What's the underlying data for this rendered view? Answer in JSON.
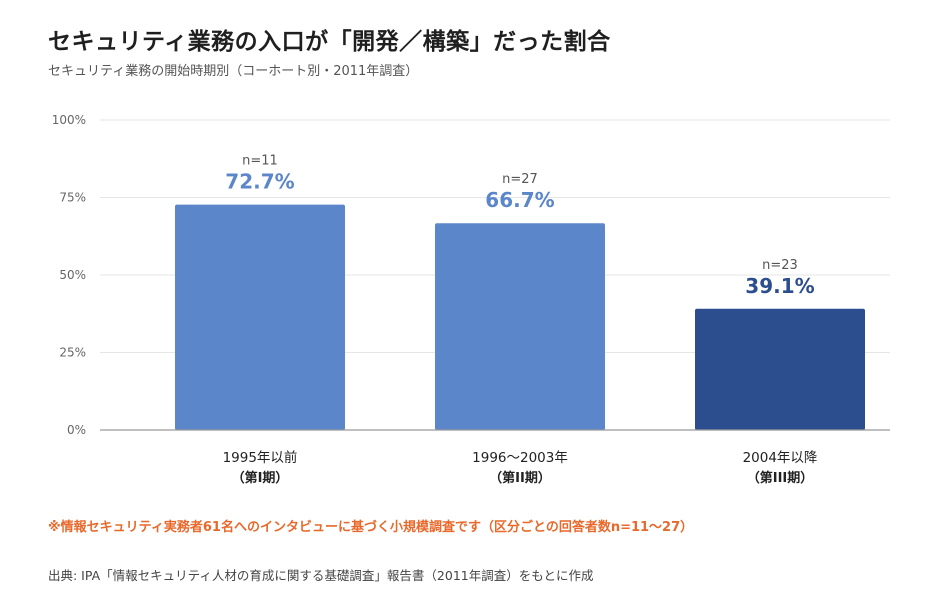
{
  "header": {
    "title": "セキュリティ業務の入口が「開発／構築」だった割合",
    "subtitle": "セキュリティ業務の開始時期別（コーホート別・2011年調査）"
  },
  "chart_data": {
    "type": "bar",
    "title": "セキュリティ業務の入口が「開発／構築」だった割合",
    "subtitle": "セキュリティ業務の開始時期別（コーホート別・2011年調査）",
    "categories": [
      {
        "line1": "1995年以前",
        "line2": "（第I期）"
      },
      {
        "line1": "1996〜2003年",
        "line2": "（第II期）"
      },
      {
        "line1": "2004年以降",
        "line2": "（第III期）"
      }
    ],
    "values": [
      72.7,
      66.7,
      39.1
    ],
    "value_labels": [
      "72.7%",
      "66.7%",
      "39.1%"
    ],
    "n_labels": [
      "n=11",
      "n=27",
      "n=23"
    ],
    "bar_colors": [
      "#5b86c9",
      "#5b86c9",
      "#2c4e8f"
    ],
    "value_label_colors": [
      "#5b86c9",
      "#5b86c9",
      "#2c4e8f"
    ],
    "ylim": [
      0,
      100
    ],
    "yticks": [
      0,
      25,
      50,
      75,
      100
    ],
    "ytick_labels": [
      "0%",
      "25%",
      "50%",
      "75%",
      "100%"
    ],
    "grid": true,
    "xlabel": "",
    "ylabel": ""
  },
  "footer": {
    "note": "※情報セキュリティ実務者61名へのインタビューに基づく小規模調査です（区分ごとの回答者数n=11〜27）",
    "source": "出典: IPA「情報セキュリティ人材の育成に関する基礎調査」報告書（2011年調査）をもとに作成"
  },
  "colors": {
    "note": "#e8692b",
    "grid": "#e6e6e6",
    "axis": "#9a9a9a"
  }
}
